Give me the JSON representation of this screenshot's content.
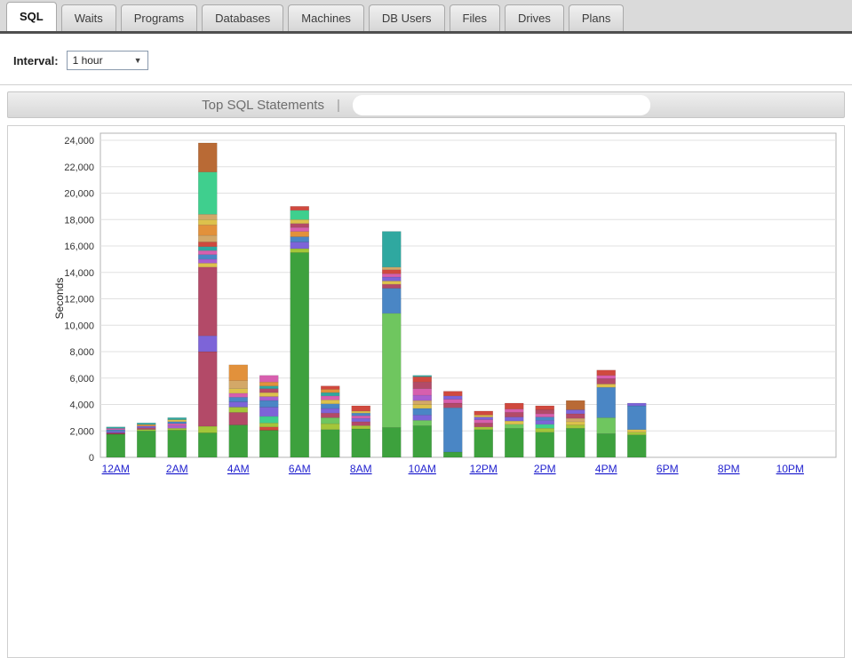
{
  "tabs": [
    {
      "label": "SQL",
      "active": true
    },
    {
      "label": "Waits"
    },
    {
      "label": "Programs"
    },
    {
      "label": "Databases"
    },
    {
      "label": "Machines"
    },
    {
      "label": "DB Users"
    },
    {
      "label": "Files"
    },
    {
      "label": "Drives"
    },
    {
      "label": "Plans"
    }
  ],
  "interval": {
    "label": "Interval:",
    "value": "1 hour"
  },
  "header": {
    "title": "Top SQL Statements",
    "separator": "|"
  },
  "chart_data": {
    "type": "bar",
    "stacked": true,
    "title": "Top SQL Statements",
    "ylabel": "Seconds",
    "ylim": [
      0,
      24000
    ],
    "ytick_step": 2000,
    "grid": "horizontal",
    "legend": "none",
    "x_slots": 24,
    "x_tick_labels": [
      "12AM",
      "2AM",
      "4AM",
      "6AM",
      "8AM",
      "10AM",
      "12PM",
      "2PM",
      "4PM",
      "6PM",
      "8PM",
      "10PM"
    ],
    "palette": {
      "green": "#3da13d",
      "ltgreen": "#6fc65f",
      "ygreen": "#a4c639",
      "emerald": "#3fcf8e",
      "teal": "#2fa8a0",
      "blue": "#4a86c5",
      "purple": "#7d64d8",
      "violet": "#a85fd0",
      "pink": "#d75fae",
      "crimson": "#b34a68",
      "darkred": "#9e3a4c",
      "red": "#d0493e",
      "orange": "#e2913b",
      "gold": "#ddc14c",
      "tan": "#d3a868",
      "sienna": "#b96a35"
    },
    "bars": [
      {
        "hour": "12AM",
        "total": 2300,
        "segments": [
          [
            "green",
            1750
          ],
          [
            "darkred",
            100
          ],
          [
            "purple",
            120
          ],
          [
            "blue",
            110
          ],
          [
            "pink",
            110
          ],
          [
            "teal",
            110
          ]
        ]
      },
      {
        "hour": "1AM",
        "total": 2600,
        "segments": [
          [
            "green",
            2000
          ],
          [
            "ygreen",
            110
          ],
          [
            "crimson",
            130
          ],
          [
            "purple",
            120
          ],
          [
            "orange",
            120
          ],
          [
            "teal",
            120
          ]
        ]
      },
      {
        "hour": "2AM",
        "total": 3000,
        "segments": [
          [
            "green",
            2050
          ],
          [
            "ygreen",
            150
          ],
          [
            "violet",
            200
          ],
          [
            "pink",
            150
          ],
          [
            "blue",
            150
          ],
          [
            "gold",
            150
          ],
          [
            "teal",
            150
          ]
        ]
      },
      {
        "hour": "3AM",
        "total": 23800,
        "segments": [
          [
            "green",
            1850
          ],
          [
            "ygreen",
            500
          ],
          [
            "crimson",
            5650
          ],
          [
            "purple",
            1200
          ],
          [
            "crimson",
            5200
          ],
          [
            "gold",
            300
          ],
          [
            "violet",
            300
          ],
          [
            "blue",
            350
          ],
          [
            "pink",
            300
          ],
          [
            "teal",
            300
          ],
          [
            "red",
            350
          ],
          [
            "tan",
            500
          ],
          [
            "orange",
            800
          ],
          [
            "gold",
            400
          ],
          [
            "tan",
            400
          ],
          [
            "emerald",
            3200
          ],
          [
            "sienna",
            2200
          ]
        ]
      },
      {
        "hour": "4AM",
        "total": 7000,
        "segments": [
          [
            "green",
            2450
          ],
          [
            "crimson",
            950
          ],
          [
            "ygreen",
            400
          ],
          [
            "purple",
            400
          ],
          [
            "blue",
            350
          ],
          [
            "pink",
            300
          ],
          [
            "gold",
            350
          ],
          [
            "tan",
            600
          ],
          [
            "orange",
            1200
          ]
        ]
      },
      {
        "hour": "5AM",
        "total": 6200,
        "segments": [
          [
            "green",
            2050
          ],
          [
            "red",
            250
          ],
          [
            "ygreen",
            300
          ],
          [
            "emerald",
            500
          ],
          [
            "purple",
            700
          ],
          [
            "blue",
            500
          ],
          [
            "violet",
            300
          ],
          [
            "gold",
            300
          ],
          [
            "crimson",
            300
          ],
          [
            "teal",
            200
          ],
          [
            "orange",
            300
          ],
          [
            "pink",
            500
          ]
        ]
      },
      {
        "hour": "6AM",
        "total": 19000,
        "segments": [
          [
            "green",
            15500
          ],
          [
            "ygreen",
            300
          ],
          [
            "purple",
            500
          ],
          [
            "blue",
            400
          ],
          [
            "orange",
            400
          ],
          [
            "pink",
            300
          ],
          [
            "crimson",
            300
          ],
          [
            "gold",
            300
          ],
          [
            "emerald",
            700
          ],
          [
            "red",
            300
          ]
        ]
      },
      {
        "hour": "7AM",
        "total": 5400,
        "segments": [
          [
            "green",
            2100
          ],
          [
            "ygreen",
            450
          ],
          [
            "ltgreen",
            450
          ],
          [
            "crimson",
            350
          ],
          [
            "purple",
            350
          ],
          [
            "blue",
            350
          ],
          [
            "gold",
            300
          ],
          [
            "pink",
            300
          ],
          [
            "teal",
            250
          ],
          [
            "orange",
            250
          ],
          [
            "red",
            250
          ]
        ]
      },
      {
        "hour": "8AM",
        "total": 3900,
        "segments": [
          [
            "green",
            2150
          ],
          [
            "ygreen",
            250
          ],
          [
            "crimson",
            300
          ],
          [
            "purple",
            250
          ],
          [
            "pink",
            200
          ],
          [
            "blue",
            200
          ],
          [
            "gold",
            150
          ],
          [
            "red",
            400
          ]
        ]
      },
      {
        "hour": "9AM",
        "total": 17100,
        "segments": [
          [
            "green",
            2250
          ],
          [
            "ltgreen",
            8650
          ],
          [
            "blue",
            1900
          ],
          [
            "crimson",
            300
          ],
          [
            "gold",
            250
          ],
          [
            "purple",
            300
          ],
          [
            "pink",
            250
          ],
          [
            "red",
            300
          ],
          [
            "tan",
            200
          ],
          [
            "teal",
            2700
          ]
        ]
      },
      {
        "hour": "10AM",
        "total": 6200,
        "segments": [
          [
            "green",
            2400
          ],
          [
            "ltgreen",
            400
          ],
          [
            "purple",
            400
          ],
          [
            "blue",
            500
          ],
          [
            "gold",
            300
          ],
          [
            "tan",
            300
          ],
          [
            "violet",
            400
          ],
          [
            "pink",
            500
          ],
          [
            "crimson",
            500
          ],
          [
            "red",
            400
          ],
          [
            "teal",
            100
          ]
        ]
      },
      {
        "hour": "11AM",
        "total": 5000,
        "segments": [
          [
            "green",
            400
          ],
          [
            "blue",
            3350
          ],
          [
            "crimson",
            350
          ],
          [
            "pink",
            300
          ],
          [
            "purple",
            250
          ],
          [
            "red",
            350
          ]
        ]
      },
      {
        "hour": "12PM",
        "total": 3500,
        "segments": [
          [
            "green",
            2100
          ],
          [
            "ygreen",
            200
          ],
          [
            "crimson",
            300
          ],
          [
            "pink",
            250
          ],
          [
            "purple",
            200
          ],
          [
            "gold",
            150
          ],
          [
            "red",
            300
          ]
        ]
      },
      {
        "hour": "1PM",
        "total": 4100,
        "segments": [
          [
            "green",
            2200
          ],
          [
            "ltgreen",
            300
          ],
          [
            "gold",
            250
          ],
          [
            "purple",
            300
          ],
          [
            "crimson",
            350
          ],
          [
            "pink",
            250
          ],
          [
            "red",
            450
          ]
        ]
      },
      {
        "hour": "2PM",
        "total": 3900,
        "segments": [
          [
            "green",
            1900
          ],
          [
            "ygreen",
            300
          ],
          [
            "emerald",
            300
          ],
          [
            "purple",
            300
          ],
          [
            "blue",
            250
          ],
          [
            "pink",
            250
          ],
          [
            "crimson",
            300
          ],
          [
            "red",
            300
          ]
        ]
      },
      {
        "hour": "3PM",
        "total": 4300,
        "segments": [
          [
            "green",
            2200
          ],
          [
            "ygreen",
            250
          ],
          [
            "gold",
            250
          ],
          [
            "tan",
            250
          ],
          [
            "crimson",
            350
          ],
          [
            "purple",
            300
          ],
          [
            "sienna",
            700
          ]
        ]
      },
      {
        "hour": "4PM",
        "total": 6600,
        "segments": [
          [
            "green",
            1800
          ],
          [
            "ltgreen",
            1200
          ],
          [
            "blue",
            2300
          ],
          [
            "gold",
            250
          ],
          [
            "crimson",
            400
          ],
          [
            "pink",
            250
          ],
          [
            "red",
            400
          ]
        ]
      },
      {
        "hour": "5PM",
        "total": 4100,
        "segments": [
          [
            "green",
            1700
          ],
          [
            "ygreen",
            200
          ],
          [
            "gold",
            200
          ],
          [
            "blue",
            1800
          ],
          [
            "purple",
            200
          ]
        ]
      }
    ]
  }
}
